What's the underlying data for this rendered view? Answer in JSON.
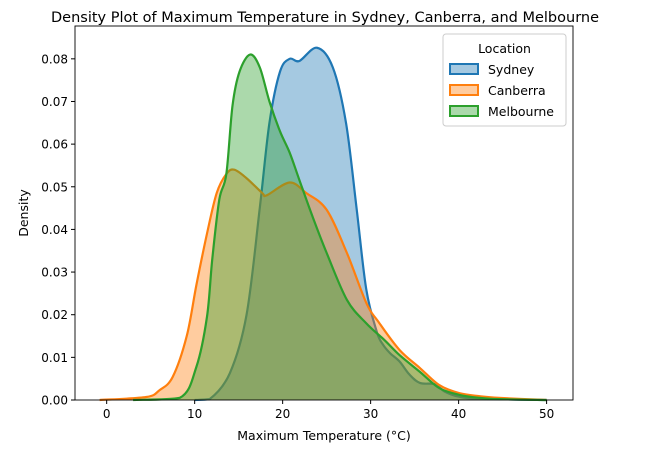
{
  "chart_data": {
    "type": "area",
    "title": "Density Plot of Maximum Temperature in Sydney, Canberra, and Melbourne",
    "xlabel": "Maximum Temperature (°C)",
    "ylabel": "Density",
    "xlim": [
      -3.6,
      53
    ],
    "ylim": [
      0,
      0.0877
    ],
    "xticks": [
      0,
      10,
      20,
      30,
      40,
      50
    ],
    "yticks": [
      0,
      0.01,
      0.02,
      0.03,
      0.04,
      0.05,
      0.06,
      0.07,
      0.08
    ],
    "ytick_labels": [
      "0.00",
      "0.01",
      "0.02",
      "0.03",
      "0.04",
      "0.05",
      "0.06",
      "0.07",
      "0.08"
    ],
    "grid": false,
    "legend": {
      "title": "Location",
      "placement": "top-right"
    },
    "series": [
      {
        "name": "Sydney",
        "color": "#1f77b4",
        "points": [
          [
            10,
            0
          ],
          [
            11.7,
            0.0002
          ],
          [
            14,
            0.0063
          ],
          [
            15.9,
            0.02
          ],
          [
            17.4,
            0.045
          ],
          [
            18.5,
            0.065
          ],
          [
            19.7,
            0.077
          ],
          [
            20.8,
            0.08
          ],
          [
            21.9,
            0.0795
          ],
          [
            23.9,
            0.0826
          ],
          [
            25.7,
            0.078
          ],
          [
            27.2,
            0.065
          ],
          [
            28.4,
            0.045
          ],
          [
            29.5,
            0.026
          ],
          [
            30.7,
            0.016
          ],
          [
            31.4,
            0.013
          ],
          [
            32.2,
            0.011
          ],
          [
            33.3,
            0.009
          ],
          [
            34.4,
            0.006
          ],
          [
            35.6,
            0.004
          ],
          [
            37.3,
            0.0037
          ],
          [
            38.4,
            0.002
          ],
          [
            40,
            0.0008
          ],
          [
            42.4,
            0.0003
          ],
          [
            50,
            0
          ]
        ]
      },
      {
        "name": "Canberra",
        "color": "#ff7f0e",
        "points": [
          [
            -0.8,
            0
          ],
          [
            4.5,
            0.0007
          ],
          [
            6,
            0.0023
          ],
          [
            7.5,
            0.0054
          ],
          [
            9.1,
            0.015
          ],
          [
            10.2,
            0.027
          ],
          [
            11.4,
            0.039
          ],
          [
            12.5,
            0.0485
          ],
          [
            13.6,
            0.053
          ],
          [
            14.5,
            0.054
          ],
          [
            15.9,
            0.052
          ],
          [
            17.7,
            0.0485
          ],
          [
            18.2,
            0.048
          ],
          [
            20.8,
            0.051
          ],
          [
            22.7,
            0.0485
          ],
          [
            25,
            0.0446
          ],
          [
            27.3,
            0.0345
          ],
          [
            29.5,
            0.0228
          ],
          [
            31,
            0.018
          ],
          [
            33.3,
            0.0117
          ],
          [
            35.6,
            0.0075
          ],
          [
            37.8,
            0.0035
          ],
          [
            40.1,
            0.0016
          ],
          [
            42.4,
            0.0009
          ],
          [
            44.6,
            0.0005
          ],
          [
            50,
            0
          ]
        ]
      },
      {
        "name": "Melbourne",
        "color": "#2ca02c",
        "points": [
          [
            3,
            0
          ],
          [
            8.3,
            0.0005
          ],
          [
            10.2,
            0.0078
          ],
          [
            11.4,
            0.0195
          ],
          [
            12,
            0.033
          ],
          [
            12.8,
            0.047
          ],
          [
            13.6,
            0.053
          ],
          [
            14.3,
            0.069
          ],
          [
            15.1,
            0.077
          ],
          [
            16.3,
            0.081
          ],
          [
            17.4,
            0.078
          ],
          [
            18.5,
            0.07
          ],
          [
            19.7,
            0.063
          ],
          [
            20.8,
            0.058
          ],
          [
            21.9,
            0.0516
          ],
          [
            23.4,
            0.043
          ],
          [
            25,
            0.0345
          ],
          [
            27.3,
            0.0235
          ],
          [
            29.5,
            0.018
          ],
          [
            31.6,
            0.014
          ],
          [
            33.3,
            0.0105
          ],
          [
            35.6,
            0.0066
          ],
          [
            37.8,
            0.0028
          ],
          [
            40.1,
            0.0012
          ],
          [
            42.4,
            0.0005
          ],
          [
            44.6,
            0.0002
          ],
          [
            50,
            0
          ]
        ]
      }
    ]
  }
}
